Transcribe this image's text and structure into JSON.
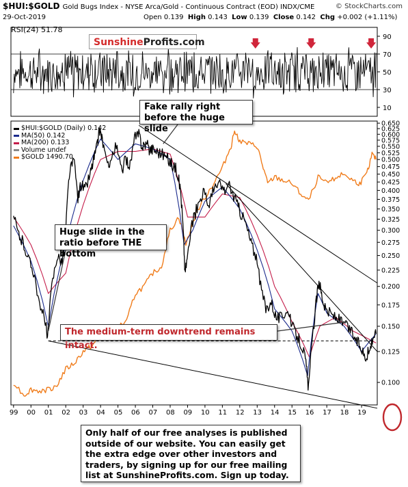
{
  "header": {
    "title": "$HUI:$GOLD",
    "subtitle": "Gold Bugs Index - NYSE Arca/Gold - Continuous Contract (EOD) INDX/CME",
    "site": "© StockCharts.com",
    "date": "29-Oct-2019",
    "quote": {
      "open_label": "Open",
      "open": "0.139",
      "high_label": "High",
      "high": "0.143",
      "low_label": "Low",
      "low": "0.139",
      "close_label": "Close",
      "close": "0.142",
      "chg_label": "Chg",
      "chg": "+0.002 (+1.11%)"
    }
  },
  "rsi_panel": {
    "label": "RSI(24) 51.78",
    "brand_part1": "Sunshine",
    "brand_part2": "Profits.com",
    "arrow_color": "#d0263b"
  },
  "legend": {
    "main": "$HUI:$GOLD (Daily) 0.142",
    "ma50": "MA(50) 0.142",
    "ma200": "MA(200) 0.133",
    "volume": "Volume undef",
    "gold": "$GOLD 1490.70"
  },
  "callouts": {
    "fake_rally": "Fake rally right before the huge slide",
    "huge_slide": "Huge slide in the ratio before THE bottom",
    "downtrend": "The medium-term downtrend remains intact.",
    "promo": "Only half of our free analyses is published outside of our website. You can easily get the extra edge over other investors and traders, by signing up for our free mailing list at SunshineProfits.com. Sign up today."
  },
  "colors": {
    "price": "#000000",
    "ma50": "#1a2a8c",
    "ma200": "#c41d4a",
    "gold": "#f07c1b",
    "annotation_red": "#c0282d"
  },
  "chart_data": [
    {
      "type": "line",
      "name": "rsi",
      "title": "RSI(24) 51.78",
      "y_ticks": [
        10,
        30,
        50,
        70,
        90
      ],
      "ylim": [
        0,
        100
      ],
      "levels": [
        30,
        70
      ],
      "x_range": [
        1999.0,
        2019.83
      ],
      "arrows_at_years": [
        2012.9,
        2016.1,
        2019.55
      ]
    },
    {
      "type": "line",
      "title": "$HUI:$GOLD (Daily) 0.142",
      "x_tick_labels": [
        "99",
        "00",
        "01",
        "02",
        "03",
        "04",
        "05",
        "06",
        "07",
        "08",
        "09",
        "10",
        "11",
        "12",
        "13",
        "14",
        "15",
        "16",
        "17",
        "18",
        "19"
      ],
      "y_scale": "log",
      "y_ticks": [
        0.1,
        0.125,
        0.15,
        0.175,
        0.2,
        0.225,
        0.25,
        0.275,
        0.3,
        0.325,
        0.35,
        0.375,
        0.4,
        0.425,
        0.45,
        0.475,
        0.5,
        0.525,
        0.55,
        0.575,
        0.6,
        0.625,
        0.65
      ],
      "y_tick_labels": [
        "0.100",
        "0.125",
        "0.150",
        "0.175",
        "0.200",
        "0.225",
        "0.250",
        "0.275",
        "0.300",
        "0.325",
        "0.350",
        "0.375",
        "0.400",
        "0.425",
        "0.450",
        "0.475",
        "0.500",
        "0.525",
        "0.550",
        "0.575",
        "0.600",
        "0.625",
        "0.650"
      ],
      "ylim": [
        0.085,
        0.66
      ],
      "xlim": [
        1998.85,
        2019.9
      ],
      "series": [
        {
          "name": "$HUI:$GOLD",
          "x": [
            1999.0,
            1999.3,
            1999.6,
            1999.9,
            2000.2,
            2000.5,
            2000.8,
            2000.95,
            2001.2,
            2001.5,
            2001.8,
            2002.0,
            2002.2,
            2002.45,
            2002.7,
            2002.9,
            2003.1,
            2003.4,
            2003.6,
            2003.8,
            2003.95,
            2004.1,
            2004.35,
            2004.6,
            2004.9,
            2005.2,
            2005.45,
            2005.7,
            2005.95,
            2006.2,
            2006.4,
            2006.6,
            2006.8,
            2007.0,
            2007.3,
            2007.6,
            2007.9,
            2008.15,
            2008.4,
            2008.6,
            2008.75,
            2008.85,
            2009.0,
            2009.3,
            2009.6,
            2009.9,
            2010.2,
            2010.5,
            2010.8,
            2011.1,
            2011.4,
            2011.7,
            2011.95,
            2012.3,
            2012.6,
            2012.9,
            2013.2,
            2013.5,
            2013.8,
            2014.1,
            2014.4,
            2014.7,
            2015.0,
            2015.3,
            2015.6,
            2015.8,
            2015.95,
            2016.2,
            2016.4,
            2016.55,
            2016.7,
            2016.9,
            2017.2,
            2017.5,
            2017.8,
            2018.1,
            2018.4,
            2018.7,
            2018.95,
            2019.2,
            2019.45,
            2019.65,
            2019.83
          ],
          "values": [
            0.33,
            0.29,
            0.27,
            0.24,
            0.22,
            0.17,
            0.16,
            0.135,
            0.2,
            0.25,
            0.24,
            0.3,
            0.45,
            0.5,
            0.38,
            0.42,
            0.4,
            0.45,
            0.5,
            0.55,
            0.62,
            0.58,
            0.48,
            0.5,
            0.55,
            0.46,
            0.5,
            0.48,
            0.58,
            0.6,
            0.55,
            0.56,
            0.54,
            0.54,
            0.53,
            0.52,
            0.5,
            0.48,
            0.46,
            0.4,
            0.3,
            0.22,
            0.25,
            0.32,
            0.36,
            0.4,
            0.36,
            0.4,
            0.42,
            0.4,
            0.41,
            0.38,
            0.35,
            0.32,
            0.28,
            0.25,
            0.2,
            0.17,
            0.18,
            0.16,
            0.16,
            0.17,
            0.15,
            0.14,
            0.13,
            0.115,
            0.095,
            0.14,
            0.18,
            0.21,
            0.19,
            0.17,
            0.165,
            0.16,
            0.155,
            0.15,
            0.145,
            0.135,
            0.13,
            0.12,
            0.125,
            0.14,
            0.142
          ]
        },
        {
          "name": "MA(50)",
          "x": [
            1999.0,
            2000.0,
            2001.0,
            2002.0,
            2003.0,
            2004.0,
            2005.0,
            2006.0,
            2007.0,
            2008.0,
            2008.8,
            2009.3,
            2010.0,
            2011.0,
            2012.0,
            2013.0,
            2014.0,
            2015.0,
            2015.9,
            2016.5,
            2017.0,
            2018.0,
            2019.0,
            2019.83
          ],
          "values": [
            0.31,
            0.24,
            0.15,
            0.27,
            0.43,
            0.58,
            0.5,
            0.56,
            0.54,
            0.5,
            0.27,
            0.3,
            0.37,
            0.41,
            0.35,
            0.26,
            0.17,
            0.145,
            0.105,
            0.19,
            0.165,
            0.15,
            0.125,
            0.142
          ]
        },
        {
          "name": "MA(200)",
          "x": [
            1999.0,
            2000.0,
            2001.0,
            2002.0,
            2003.0,
            2004.0,
            2005.0,
            2006.0,
            2007.0,
            2008.0,
            2009.0,
            2010.0,
            2011.0,
            2012.0,
            2013.0,
            2014.0,
            2015.0,
            2016.0,
            2016.6,
            2017.5,
            2018.5,
            2019.83
          ],
          "values": [
            0.33,
            0.27,
            0.19,
            0.22,
            0.36,
            0.5,
            0.53,
            0.53,
            0.54,
            0.52,
            0.33,
            0.33,
            0.39,
            0.38,
            0.29,
            0.2,
            0.155,
            0.12,
            0.15,
            0.16,
            0.145,
            0.133
          ]
        },
        {
          "name": "$GOLD",
          "x": [
            1999.0,
            1999.6,
            2000.0,
            2000.5,
            2001.0,
            2001.5,
            2002.0,
            2002.5,
            2003.0,
            2003.5,
            2004.0,
            2004.5,
            2005.0,
            2005.5,
            2006.0,
            2006.5,
            2007.0,
            2007.5,
            2008.0,
            2008.5,
            2008.9,
            2009.5,
            2010.0,
            2010.5,
            2011.0,
            2011.5,
            2011.7,
            2012.0,
            2012.5,
            2013.0,
            2013.3,
            2013.6,
            2014.0,
            2014.5,
            2015.0,
            2015.5,
            2015.95,
            2016.5,
            2017.0,
            2017.5,
            2018.0,
            2018.5,
            2018.9,
            2019.3,
            2019.6,
            2019.83
          ],
          "values": [
            0.1,
            0.091,
            0.095,
            0.094,
            0.095,
            0.098,
            0.11,
            0.115,
            0.125,
            0.13,
            0.14,
            0.142,
            0.15,
            0.155,
            0.19,
            0.2,
            0.22,
            0.23,
            0.3,
            0.33,
            0.27,
            0.34,
            0.38,
            0.42,
            0.47,
            0.55,
            0.62,
            0.57,
            0.56,
            0.55,
            0.48,
            0.42,
            0.44,
            0.43,
            0.42,
            0.39,
            0.37,
            0.44,
            0.42,
            0.44,
            0.45,
            0.43,
            0.42,
            0.45,
            0.52,
            0.5
          ]
        }
      ],
      "lines": [
        {
          "name": "support-line-lower",
          "points": [
            [
              2001.0,
              0.135
            ],
            [
              2019.9,
              0.083
            ]
          ]
        },
        {
          "name": "resistance-line-upper",
          "points": [
            [
              2006.2,
              0.64
            ],
            [
              2019.9,
              0.205
            ]
          ]
        },
        {
          "name": "resistance-line-middle",
          "points": [
            [
              2011.2,
              0.42
            ],
            [
              2019.9,
              0.125
            ]
          ]
        },
        {
          "name": "horizontal-dashed",
          "points": [
            [
              2001.0,
              0.135
            ],
            [
              2019.7,
              0.135
            ]
          ]
        }
      ]
    }
  ]
}
